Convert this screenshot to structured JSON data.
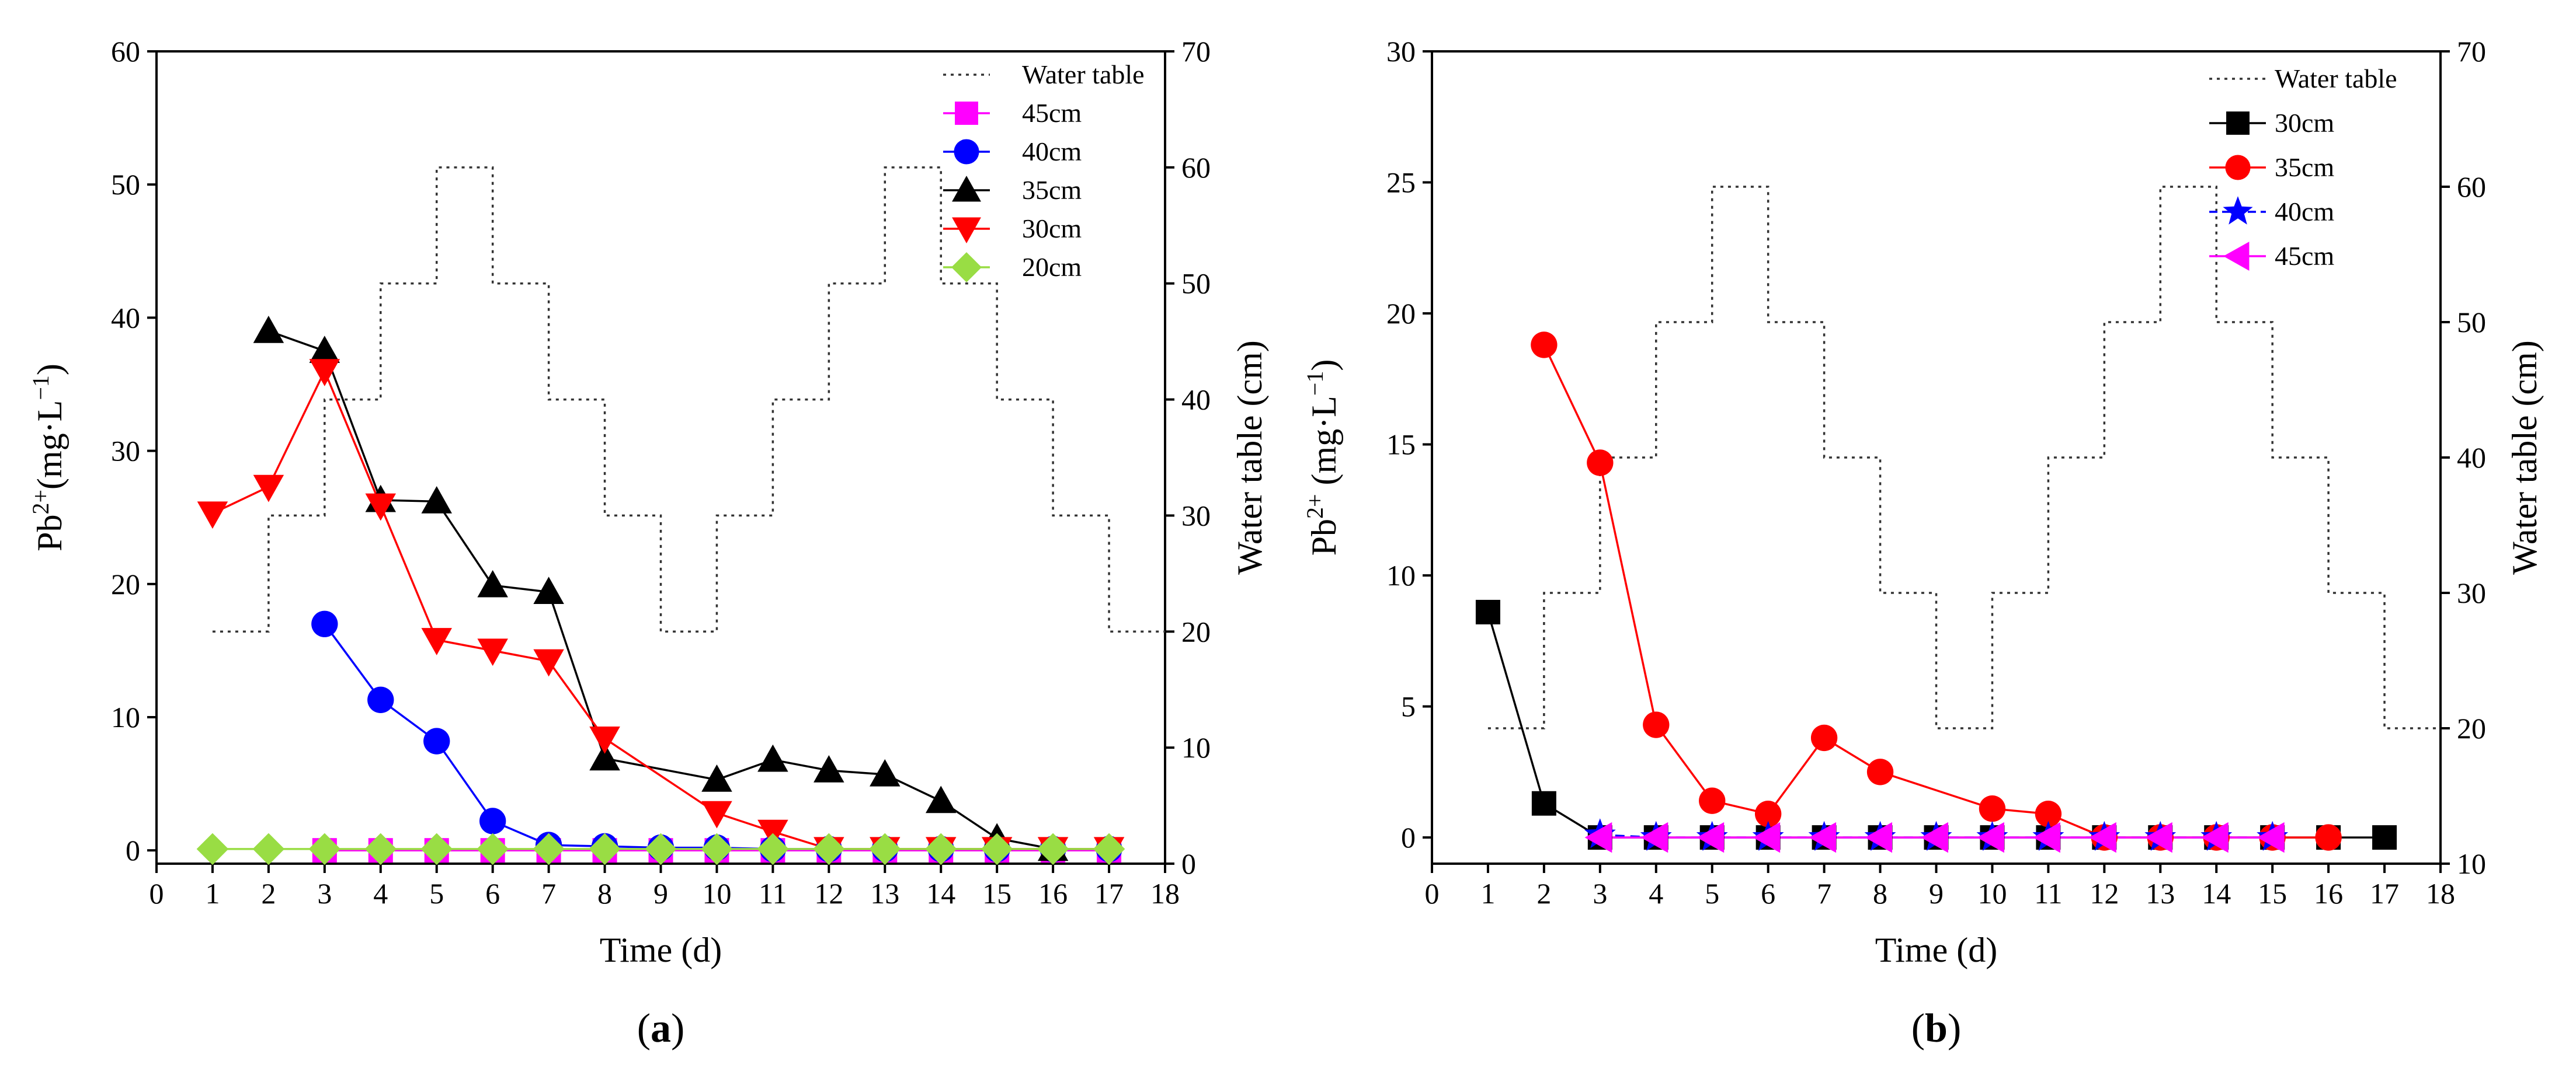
{
  "chart_data": [
    {
      "type": "line",
      "panel_label": "a",
      "xlabel": "Time (d)",
      "ylabel": "Pb",
      "ylabel_sup": "2+",
      "ylabel_unit": "(mg·L",
      "ylabel_unit_sup": "−1",
      "ylabel_close": ")",
      "y2label": "Water table (cm)",
      "xlim": [
        0,
        18
      ],
      "ylim": [
        -1,
        60
      ],
      "y2lim": [
        0,
        70
      ],
      "xticks": [
        "0",
        "1",
        "2",
        "3",
        "4",
        "5",
        "6",
        "7",
        "8",
        "9",
        "10",
        "11",
        "12",
        "13",
        "14",
        "15",
        "16",
        "17",
        "18"
      ],
      "yticks": [
        "0",
        "10",
        "20",
        "30",
        "40",
        "50",
        "60"
      ],
      "y2ticks": [
        "0",
        "10",
        "20",
        "30",
        "40",
        "50",
        "60",
        "70"
      ],
      "legend_position": "top-right",
      "water_table": {
        "name": "Water table",
        "steps": [
          {
            "from": 1,
            "to": 2,
            "value": 20
          },
          {
            "from": 2,
            "to": 3,
            "value": 30
          },
          {
            "from": 3,
            "to": 4,
            "value": 40
          },
          {
            "from": 4,
            "to": 5,
            "value": 50
          },
          {
            "from": 5,
            "to": 6,
            "value": 60
          },
          {
            "from": 6,
            "to": 7,
            "value": 50
          },
          {
            "from": 7,
            "to": 8,
            "value": 40
          },
          {
            "from": 8,
            "to": 9,
            "value": 30
          },
          {
            "from": 9,
            "to": 10,
            "value": 20
          },
          {
            "from": 10,
            "to": 11,
            "value": 30
          },
          {
            "from": 11,
            "to": 12,
            "value": 40
          },
          {
            "from": 12,
            "to": 13,
            "value": 50
          },
          {
            "from": 13,
            "to": 14,
            "value": 60
          },
          {
            "from": 14,
            "to": 15,
            "value": 50
          },
          {
            "from": 15,
            "to": 16,
            "value": 40
          },
          {
            "from": 16,
            "to": 17,
            "value": 30
          },
          {
            "from": 17,
            "to": 18,
            "value": 20
          }
        ]
      },
      "series": [
        {
          "name": "45cm",
          "color": "#ff00ff",
          "marker": "square",
          "x": [
            3,
            4,
            5,
            6,
            7,
            8,
            9,
            10,
            11,
            12,
            13,
            14,
            15,
            16,
            17
          ],
          "y": [
            0,
            0,
            0,
            0,
            0,
            0,
            0,
            0,
            0,
            0,
            0,
            0,
            0,
            0,
            0
          ]
        },
        {
          "name": "40cm",
          "color": "#0000ff",
          "marker": "circle",
          "x": [
            3,
            4,
            5,
            6,
            7,
            8,
            9,
            10,
            11,
            12,
            13,
            14,
            15,
            16,
            17
          ],
          "y": [
            17.0,
            11.3,
            8.2,
            2.2,
            0.4,
            0.3,
            0.2,
            0.2,
            0.1,
            0.1,
            0.1,
            0.1,
            0.1,
            0.1,
            0.1
          ]
        },
        {
          "name": "35cm",
          "color": "#000000",
          "marker": "triangle-up",
          "x": [
            2,
            3,
            4,
            5,
            6,
            7,
            8,
            10,
            11,
            12,
            13,
            14,
            15,
            16
          ],
          "y": [
            39.0,
            37.5,
            26.3,
            26.2,
            19.9,
            19.4,
            6.9,
            5.3,
            6.8,
            6.0,
            5.7,
            3.7,
            0.9,
            0.1
          ]
        },
        {
          "name": "30cm",
          "color": "#ff0000",
          "marker": "triangle-down",
          "x": [
            1,
            2,
            3,
            4,
            5,
            6,
            7,
            8,
            10,
            11,
            12,
            13,
            14,
            15,
            16,
            17
          ],
          "y": [
            25.3,
            27.3,
            36.0,
            25.9,
            15.8,
            15.0,
            14.2,
            8.4,
            2.8,
            1.4,
            0.1,
            0.1,
            0.1,
            0.1,
            0.1,
            0.1
          ]
        },
        {
          "name": "20cm",
          "color": "#99dd44",
          "marker": "diamond",
          "x": [
            1,
            2,
            3,
            4,
            5,
            6,
            7,
            8,
            9,
            10,
            11,
            12,
            13,
            14,
            15,
            16,
            17
          ],
          "y": [
            0.1,
            0.1,
            0.1,
            0.1,
            0.1,
            0.1,
            0.1,
            0.1,
            0.1,
            0.1,
            0.1,
            0.1,
            0.1,
            0.1,
            0.1,
            0.1,
            0.1
          ]
        }
      ]
    },
    {
      "type": "line",
      "panel_label": "b",
      "xlabel": "Time (d)",
      "ylabel": "Pb",
      "ylabel_sup": "2+",
      "ylabel_unit": " (mg·L",
      "ylabel_unit_sup": "−1",
      "ylabel_close": ")",
      "y2label": "Water table (cm)",
      "xlim": [
        0,
        18
      ],
      "ylim": [
        -1,
        30
      ],
      "y2lim": [
        10,
        70
      ],
      "xticks": [
        "0",
        "1",
        "2",
        "3",
        "4",
        "5",
        "6",
        "7",
        "8",
        "9",
        "10",
        "11",
        "12",
        "13",
        "14",
        "15",
        "16",
        "17",
        "18"
      ],
      "yticks": [
        "0",
        "5",
        "10",
        "15",
        "20",
        "25",
        "30"
      ],
      "y2ticks": [
        "10",
        "20",
        "30",
        "40",
        "50",
        "60",
        "70"
      ],
      "legend_position": "top-right",
      "water_table": {
        "name": "Water table",
        "steps": [
          {
            "from": 1,
            "to": 2,
            "value": 20
          },
          {
            "from": 2,
            "to": 3,
            "value": 30
          },
          {
            "from": 3,
            "to": 4,
            "value": 40
          },
          {
            "from": 4,
            "to": 5,
            "value": 50
          },
          {
            "from": 5,
            "to": 6,
            "value": 60
          },
          {
            "from": 6,
            "to": 7,
            "value": 50
          },
          {
            "from": 7,
            "to": 8,
            "value": 40
          },
          {
            "from": 8,
            "to": 9,
            "value": 30
          },
          {
            "from": 9,
            "to": 10,
            "value": 20
          },
          {
            "from": 10,
            "to": 11,
            "value": 30
          },
          {
            "from": 11,
            "to": 12,
            "value": 40
          },
          {
            "from": 12,
            "to": 13,
            "value": 50
          },
          {
            "from": 13,
            "to": 14,
            "value": 60
          },
          {
            "from": 14,
            "to": 15,
            "value": 50
          },
          {
            "from": 15,
            "to": 16,
            "value": 40
          },
          {
            "from": 16,
            "to": 17,
            "value": 30
          },
          {
            "from": 17,
            "to": 18,
            "value": 20
          }
        ]
      },
      "series": [
        {
          "name": "30cm",
          "color": "#000000",
          "marker": "square",
          "x": [
            1,
            2,
            3,
            4,
            5,
            6,
            7,
            8,
            9,
            10,
            11,
            12,
            13,
            14,
            15,
            16,
            17
          ],
          "y": [
            8.6,
            1.3,
            0,
            0,
            0,
            0,
            0,
            0,
            0,
            0,
            0,
            0,
            0,
            0,
            0,
            0,
            0
          ]
        },
        {
          "name": "35cm",
          "color": "#ff0000",
          "marker": "circle",
          "x": [
            2,
            3,
            4,
            5,
            6,
            7,
            8,
            10,
            11,
            12,
            13,
            14,
            15,
            16
          ],
          "y": [
            18.8,
            14.3,
            4.3,
            1.4,
            0.9,
            3.8,
            2.5,
            1.1,
            0.9,
            0,
            0,
            0,
            0,
            0
          ]
        },
        {
          "name": "40cm",
          "color": "#0000ff",
          "marker": "star",
          "dashed": true,
          "x": [
            3,
            4,
            5,
            6,
            7,
            8,
            9,
            10,
            11,
            12,
            13,
            14,
            15
          ],
          "y": [
            0.1,
            0,
            0,
            0,
            0,
            0,
            0,
            0,
            0,
            0,
            0,
            0,
            0
          ]
        },
        {
          "name": "45cm",
          "color": "#ff00ff",
          "marker": "triangle-left",
          "x": [
            3,
            4,
            5,
            6,
            7,
            8,
            9,
            10,
            11,
            12,
            13,
            14,
            15
          ],
          "y": [
            0,
            0,
            0,
            0,
            0,
            0,
            0,
            0,
            0,
            0,
            0,
            0,
            0
          ]
        }
      ]
    }
  ]
}
